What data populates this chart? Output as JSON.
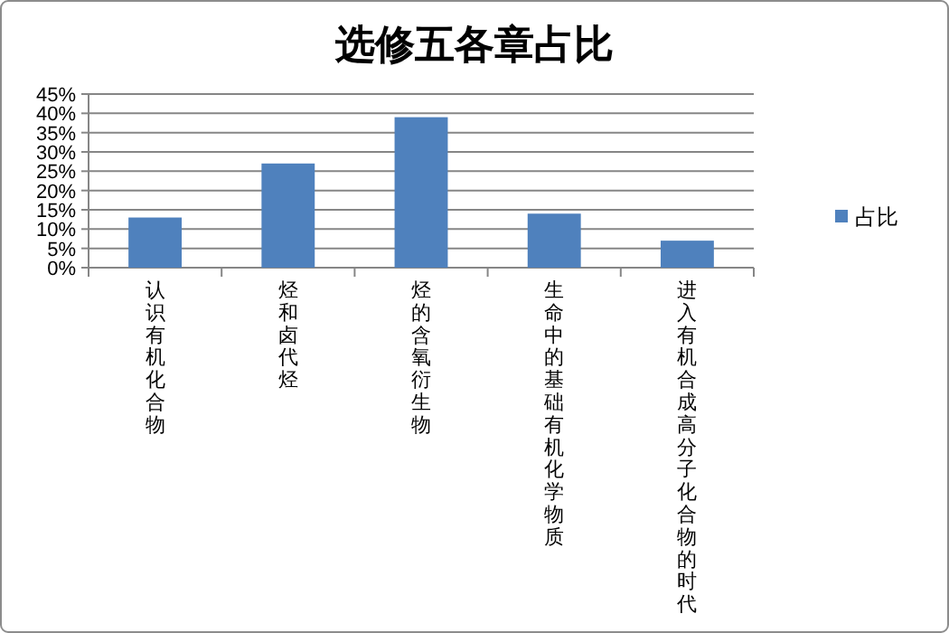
{
  "chart_data": {
    "type": "bar",
    "title": "选修五各章占比",
    "categories": [
      "认识有机化合物",
      "烃和卤代烃",
      "烃的含氧衍生物",
      "生命中的基础有机化学物质",
      "进入有机合成高分子化合物的时代"
    ],
    "series": [
      {
        "name": "占比",
        "color": "#4f81bd",
        "values": [
          13,
          27,
          39,
          14,
          7
        ]
      }
    ],
    "ylim": [
      0,
      45
    ],
    "yticks": [
      {
        "value": 0,
        "label": "0%"
      },
      {
        "value": 5,
        "label": "5%"
      },
      {
        "value": 10,
        "label": "10%"
      },
      {
        "value": 15,
        "label": "15%"
      },
      {
        "value": 20,
        "label": "20%"
      },
      {
        "value": 25,
        "label": "25%"
      },
      {
        "value": 30,
        "label": "30%"
      },
      {
        "value": 35,
        "label": "35%"
      },
      {
        "value": 40,
        "label": "40%"
      },
      {
        "value": 45,
        "label": "45%"
      }
    ],
    "grid": "y",
    "legend": "right"
  }
}
